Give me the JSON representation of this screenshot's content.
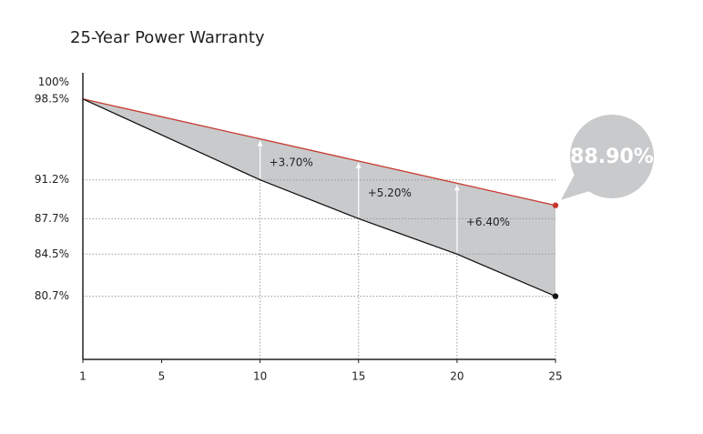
{
  "chart_data": {
    "type": "line",
    "title": "25-Year Power Warranty",
    "x": [
      1,
      10,
      15,
      20,
      25
    ],
    "series": [
      {
        "color": "#c8372d",
        "values": [
          98.5,
          94.9,
          92.9,
          90.9,
          88.9
        ]
      },
      {
        "color": "#111111",
        "values": [
          98.5,
          91.2,
          87.7,
          84.5,
          80.7
        ]
      }
    ],
    "xlim": [
      1,
      25
    ],
    "xticks": [
      1,
      5,
      10,
      15,
      20,
      25
    ],
    "ylim": [
      75,
      100.7
    ],
    "yticks": [
      {
        "value": 100,
        "label": "100%"
      },
      {
        "value": 98.5,
        "label": "98.5%"
      },
      {
        "value": 91.2,
        "label": "91.2%"
      },
      {
        "value": 87.7,
        "label": "87.7%"
      },
      {
        "value": 84.5,
        "label": "84.5%"
      },
      {
        "value": 80.7,
        "label": "80.7%"
      }
    ],
    "annotations": [
      {
        "text": "+3.70%",
        "x": 10
      },
      {
        "text": "+5.20%",
        "x": 15
      },
      {
        "text": "+6.40%",
        "x": 20
      }
    ],
    "callout": "88.90%",
    "fill_color": "#c8cacc"
  }
}
